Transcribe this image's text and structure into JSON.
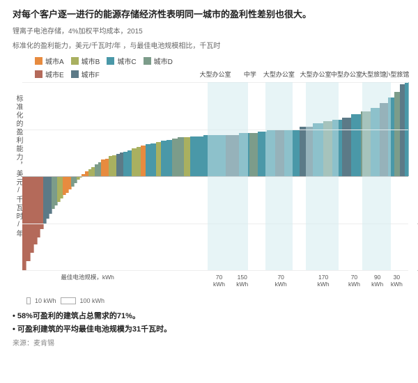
{
  "title": "对每个客户逐一进行的能源存储经济性表明同一城市的盈利性差别也很大。",
  "sub1": "锂离子电池存储，4%加权平均成本，2015",
  "sub2": "标准化的盈利能力，美元/千瓦时/年 ，与最佳电池规模相比，千瓦时",
  "legend": [
    {
      "label": "城市A",
      "color": "#e78b3f"
    },
    {
      "label": "城市B",
      "color": "#a9b060"
    },
    {
      "label": "城市C",
      "color": "#4a98a8"
    },
    {
      "label": "城市D",
      "color": "#7c9c8a"
    },
    {
      "label": "城市E",
      "color": "#b46a5a"
    },
    {
      "label": "城市F",
      "color": "#5c7a87"
    }
  ],
  "yAxis": {
    "label": "标准化的盈利能力，美元/千瓦时/年",
    "min": -80,
    "max": 80,
    "ticks": [
      -80,
      -40,
      0,
      40,
      80
    ]
  },
  "topLabels": [
    {
      "text": "大型办公室",
      "x": 50
    },
    {
      "text": "中学",
      "x": 59
    },
    {
      "text": "大型办公室",
      "x": 66.5
    },
    {
      "text": "大型办公室",
      "x": 76
    },
    {
      "text": "中型办公室",
      "x": 84
    },
    {
      "text": "大型旅馆",
      "x": 91
    },
    {
      "text": "小型旅馆",
      "x": 97
    }
  ],
  "xNote": "最佳电池规模，kWh",
  "xLabels": [
    {
      "text": "70\nkWh",
      "x": 51
    },
    {
      "text": "150\nkWh",
      "x": 57
    },
    {
      "text": "70\nkWh",
      "x": 67
    },
    {
      "text": "170\nkWh",
      "x": 78
    },
    {
      "text": "70\nkWh",
      "x": 86
    },
    {
      "text": "90\nkWh",
      "x": 92
    },
    {
      "text": "30\nkWh",
      "x": 97
    }
  ],
  "highlights": [
    {
      "x": 48,
      "w": 10.5
    },
    {
      "x": 63,
      "w": 7
    },
    {
      "x": 73.5,
      "w": 8.5
    },
    {
      "x": 88,
      "w": 7.5
    }
  ],
  "scaleLegend": {
    "small": "10 kWh",
    "large": "100 kWh"
  },
  "bars": [
    {
      "v": -80,
      "w": 0.8,
      "c": "#b46a5a"
    },
    {
      "v": -72,
      "w": 0.8,
      "c": "#b46a5a"
    },
    {
      "v": -65,
      "w": 0.8,
      "c": "#b46a5a"
    },
    {
      "v": -58,
      "w": 0.7,
      "c": "#b46a5a"
    },
    {
      "v": -52,
      "w": 0.7,
      "c": "#b46a5a"
    },
    {
      "v": -45,
      "w": 0.7,
      "c": "#b46a5a"
    },
    {
      "v": -40,
      "w": 0.6,
      "c": "#5c7a87"
    },
    {
      "v": -36,
      "w": 0.6,
      "c": "#5c7a87"
    },
    {
      "v": -32,
      "w": 0.6,
      "c": "#5c7a87"
    },
    {
      "v": -28,
      "w": 0.6,
      "c": "#7c9c8a"
    },
    {
      "v": -25,
      "w": 0.6,
      "c": "#7c9c8a"
    },
    {
      "v": -22,
      "w": 0.6,
      "c": "#a9b060"
    },
    {
      "v": -19,
      "w": 0.6,
      "c": "#a9b060"
    },
    {
      "v": -16,
      "w": 0.6,
      "c": "#e78b3f"
    },
    {
      "v": -14,
      "w": 0.6,
      "c": "#e78b3f"
    },
    {
      "v": -11,
      "w": 0.6,
      "c": "#e78b3f"
    },
    {
      "v": -9,
      "w": 0.6,
      "c": "#7c9c8a"
    },
    {
      "v": -6,
      "w": 0.6,
      "c": "#7c9c8a"
    },
    {
      "v": -3,
      "w": 0.6,
      "c": "#a9b060"
    },
    {
      "v": -1,
      "w": 0.6,
      "c": "#a9b060"
    },
    {
      "v": 2,
      "w": 0.7,
      "c": "#e78b3f"
    },
    {
      "v": 4,
      "w": 0.7,
      "c": "#e78b3f"
    },
    {
      "v": 6,
      "w": 0.7,
      "c": "#a9b060"
    },
    {
      "v": 8,
      "w": 0.7,
      "c": "#a9b060"
    },
    {
      "v": 10,
      "w": 0.7,
      "c": "#7c9c8a"
    },
    {
      "v": 12,
      "w": 0.7,
      "c": "#7c9c8a"
    },
    {
      "v": 14,
      "w": 0.8,
      "c": "#e78b3f"
    },
    {
      "v": 15,
      "w": 0.8,
      "c": "#e78b3f"
    },
    {
      "v": 17,
      "w": 0.8,
      "c": "#a9b060"
    },
    {
      "v": 18,
      "w": 0.8,
      "c": "#a9b060"
    },
    {
      "v": 19,
      "w": 0.8,
      "c": "#5c7a87"
    },
    {
      "v": 20,
      "w": 0.8,
      "c": "#5c7a87"
    },
    {
      "v": 21,
      "w": 0.9,
      "c": "#4a98a8"
    },
    {
      "v": 22,
      "w": 0.9,
      "c": "#4a98a8"
    },
    {
      "v": 24,
      "w": 1.0,
      "c": "#a9b060"
    },
    {
      "v": 25,
      "w": 1.0,
      "c": "#a9b060"
    },
    {
      "v": 26,
      "w": 1.0,
      "c": "#e78b3f"
    },
    {
      "v": 27,
      "w": 1.1,
      "c": "#4a98a8"
    },
    {
      "v": 28,
      "w": 1.1,
      "c": "#4a98a8"
    },
    {
      "v": 29,
      "w": 1.1,
      "c": "#a9b060"
    },
    {
      "v": 30,
      "w": 1.2,
      "c": "#4a98a8"
    },
    {
      "v": 31,
      "w": 1.2,
      "c": "#4a98a8"
    },
    {
      "v": 32,
      "w": 1.3,
      "c": "#7c9c8a"
    },
    {
      "v": 33,
      "w": 1.3,
      "c": "#7c9c8a"
    },
    {
      "v": 33,
      "w": 1.3,
      "c": "#a9b060"
    },
    {
      "v": 34,
      "w": 1.4,
      "c": "#4a98a8"
    },
    {
      "v": 34,
      "w": 1.5,
      "c": "#4a98a8"
    },
    {
      "v": 35,
      "w": 2.0,
      "c": "#4a98a8"
    },
    {
      "v": 35,
      "w": 2.8,
      "c": "#4a98a8"
    },
    {
      "v": 35,
      "w": 3.0,
      "c": "#5c7a87"
    },
    {
      "v": 37,
      "w": 2.2,
      "c": "#4a98a8"
    },
    {
      "v": 37,
      "w": 1.8,
      "c": "#7c9c8a"
    },
    {
      "v": 38,
      "w": 2.0,
      "c": "#4a98a8"
    },
    {
      "v": 39,
      "w": 1.8,
      "c": "#4a98a8"
    },
    {
      "v": 40,
      "w": 2.0,
      "c": "#5c7a87"
    },
    {
      "v": 40,
      "w": 3.2,
      "c": "#4a98a8"
    },
    {
      "v": 42,
      "w": 3.0,
      "c": "#5c7a87"
    },
    {
      "v": 45,
      "w": 2.2,
      "c": "#4a98a8"
    },
    {
      "v": 47,
      "w": 2.0,
      "c": "#7c9c8a"
    },
    {
      "v": 48,
      "w": 2.0,
      "c": "#4a98a8"
    },
    {
      "v": 50,
      "w": 2.0,
      "c": "#5c7a87"
    },
    {
      "v": 53,
      "w": 2.2,
      "c": "#4a98a8"
    },
    {
      "v": 55,
      "w": 2.0,
      "c": "#7c9c8a"
    },
    {
      "v": 58,
      "w": 2.0,
      "c": "#4a98a8"
    },
    {
      "v": 62,
      "w": 1.8,
      "c": "#5c7a87"
    },
    {
      "v": 67,
      "w": 1.4,
      "c": "#4a98a8"
    },
    {
      "v": 72,
      "w": 1.2,
      "c": "#7c9c8a"
    },
    {
      "v": 78,
      "w": 1.0,
      "c": "#5c7a87"
    },
    {
      "v": 80,
      "w": 0.8,
      "c": "#4a98a8"
    }
  ],
  "bullets": [
    "• 58%可盈利的建筑占总需求的71%。",
    "• 可盈利建筑的平均最佳电池规模为31千瓦时。"
  ],
  "source": "来源：麦肯锡"
}
